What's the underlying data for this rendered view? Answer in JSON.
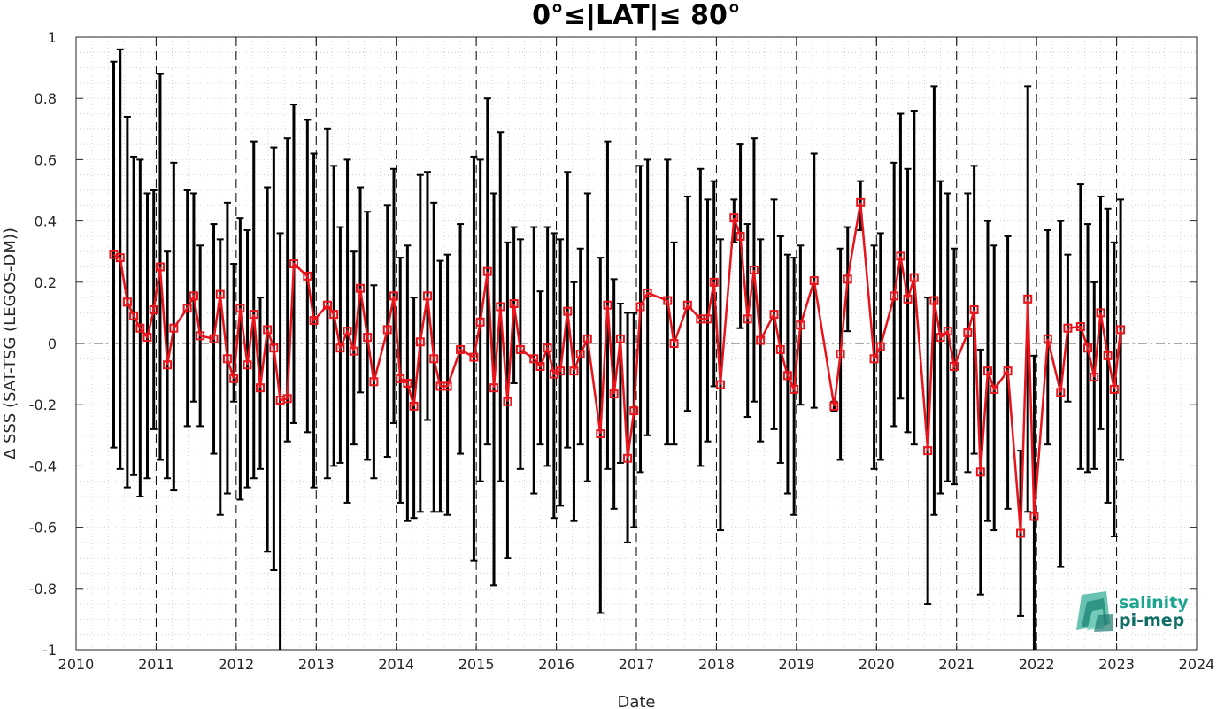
{
  "chart_data": {
    "type": "line",
    "title": "0°≤|LAT|≤ 80°",
    "xlabel": "Date",
    "ylabel": "Δ SSS (SAT-TSG (LEGOS-DM))",
    "xlim": [
      2010,
      2024
    ],
    "ylim": [
      -1,
      1
    ],
    "xticks": [
      "2010",
      "2011",
      "2012",
      "2013",
      "2014",
      "2015",
      "2016",
      "2017",
      "2018",
      "2019",
      "2020",
      "2021",
      "2022",
      "2023",
      "2024"
    ],
    "yticks": [
      "-1",
      "-0.8",
      "-0.6",
      "-0.4",
      "-0.2",
      "0",
      "0.2",
      "0.4",
      "0.6",
      "0.8",
      "1"
    ],
    "grid": "dotted minor grid",
    "year_markers": "dashed vertical lines at year boundaries",
    "zero_line": "dash-dot horizontal line at 0",
    "series": [
      {
        "color": "#e8141c",
        "errorbar_color": "#000000",
        "marker": "square",
        "x": [
          2010.47,
          2010.55,
          2010.64,
          2010.72,
          2010.8,
          2010.89,
          2010.97,
          2011.05,
          2011.14,
          2011.22,
          2011.39,
          2011.47,
          2011.55,
          2011.72,
          2011.8,
          2011.89,
          2011.97,
          2012.05,
          2012.14,
          2012.22,
          2012.3,
          2012.39,
          2012.47,
          2012.55,
          2012.64,
          2012.72,
          2012.89,
          2012.97,
          2013.14,
          2013.22,
          2013.3,
          2013.39,
          2013.47,
          2013.55,
          2013.64,
          2013.72,
          2013.89,
          2013.97,
          2014.05,
          2014.14,
          2014.22,
          2014.3,
          2014.39,
          2014.47,
          2014.55,
          2014.64,
          2014.8,
          2014.97,
          2015.05,
          2015.14,
          2015.22,
          2015.3,
          2015.39,
          2015.47,
          2015.55,
          2015.72,
          2015.8,
          2015.89,
          2015.97,
          2016.05,
          2016.14,
          2016.22,
          2016.3,
          2016.39,
          2016.55,
          2016.64,
          2016.72,
          2016.8,
          2016.89,
          2016.97,
          2017.05,
          2017.14,
          2017.39,
          2017.47,
          2017.64,
          2017.8,
          2017.89,
          2017.97,
          2018.05,
          2018.22,
          2018.3,
          2018.39,
          2018.47,
          2018.55,
          2018.72,
          2018.8,
          2018.89,
          2018.97,
          2019.05,
          2019.22,
          2019.47,
          2019.55,
          2019.64,
          2019.8,
          2019.97,
          2020.05,
          2020.22,
          2020.3,
          2020.39,
          2020.47,
          2020.64,
          2020.72,
          2020.8,
          2020.89,
          2020.97,
          2021.14,
          2021.22,
          2021.3,
          2021.39,
          2021.47,
          2021.64,
          2021.8,
          2021.89,
          2021.97,
          2022.14,
          2022.3,
          2022.39,
          2022.55,
          2022.64,
          2022.72,
          2022.8,
          2022.89,
          2022.97,
          2023.05
        ],
        "values": [
          0.29,
          0.28,
          0.135,
          0.09,
          0.05,
          0.02,
          0.11,
          0.25,
          -0.07,
          0.05,
          0.115,
          0.155,
          0.025,
          0.015,
          0.16,
          -0.05,
          -0.115,
          0.115,
          -0.07,
          0.095,
          -0.145,
          0.045,
          -0.015,
          -0.185,
          -0.18,
          0.26,
          0.22,
          0.075,
          0.125,
          0.095,
          -0.015,
          0.04,
          -0.025,
          0.18,
          0.02,
          -0.125,
          0.045,
          0.155,
          -0.115,
          -0.13,
          -0.205,
          0.005,
          0.155,
          -0.05,
          -0.14,
          -0.14,
          -0.02,
          -0.045,
          0.07,
          0.235,
          -0.145,
          0.12,
          -0.19,
          0.13,
          -0.02,
          -0.05,
          -0.075,
          -0.015,
          -0.1,
          -0.09,
          0.105,
          -0.09,
          -0.035,
          0.015,
          -0.295,
          0.125,
          -0.165,
          0.015,
          -0.375,
          -0.22,
          0.12,
          0.165,
          0.14,
          0.0,
          0.125,
          0.08,
          0.08,
          0.2,
          -0.135,
          0.41,
          0.35,
          0.08,
          0.24,
          0.01,
          0.095,
          -0.02,
          -0.105,
          -0.15,
          0.06,
          0.205,
          -0.205,
          -0.035,
          0.21,
          0.46,
          -0.05,
          -0.01,
          0.155,
          0.285,
          0.145,
          0.215,
          -0.35,
          0.14,
          0.02,
          0.04,
          -0.075,
          0.035,
          0.11,
          -0.42,
          -0.09,
          -0.15,
          -0.09,
          -0.62,
          0.145,
          -0.565,
          0.015,
          -0.16,
          0.05,
          0.055,
          -0.015,
          -0.11,
          0.1,
          -0.04,
          -0.15,
          0.045
        ],
        "err_low": [
          -0.34,
          -0.41,
          -0.47,
          -0.43,
          -0.5,
          -0.44,
          -0.28,
          -0.38,
          -0.44,
          -0.48,
          -0.27,
          -0.19,
          -0.27,
          -0.36,
          -0.56,
          -0.49,
          -0.19,
          -0.51,
          -0.47,
          -0.44,
          -0.41,
          -0.68,
          -0.74,
          -1.0,
          -0.32,
          -0.26,
          -0.29,
          -0.47,
          -0.44,
          -0.4,
          -0.39,
          -0.52,
          -0.33,
          -0.16,
          -0.38,
          -0.44,
          -0.37,
          -0.26,
          -0.52,
          -0.58,
          -0.57,
          -0.55,
          -0.25,
          -0.55,
          -0.55,
          -0.56,
          -0.36,
          -0.71,
          -0.45,
          -0.33,
          -0.79,
          -0.45,
          -0.7,
          -0.13,
          -0.41,
          -0.49,
          -0.33,
          -0.4,
          -0.57,
          -0.53,
          -0.34,
          -0.58,
          -0.33,
          -0.45,
          -0.88,
          -0.41,
          -0.54,
          -0.39,
          -0.65,
          -0.6,
          -0.42,
          -0.3,
          -0.33,
          -0.33,
          -0.22,
          -0.4,
          -0.32,
          -0.14,
          -0.61,
          0.33,
          0.05,
          -0.24,
          -0.19,
          -0.32,
          -0.28,
          -0.39,
          -0.49,
          -0.56,
          -0.2,
          -0.21,
          -0.22,
          -0.38,
          0.04,
          0.37,
          -0.41,
          -0.38,
          -0.27,
          -0.18,
          -0.29,
          -0.33,
          -0.85,
          -0.56,
          -0.49,
          -0.45,
          -0.46,
          -0.42,
          -0.36,
          -0.82,
          -0.58,
          -0.61,
          -0.54,
          -0.89,
          -0.55,
          -1.0,
          -0.33,
          -0.73,
          -0.19,
          -0.41,
          -0.42,
          -0.41,
          -0.28,
          -0.52,
          -0.63,
          -0.38
        ],
        "err_high": [
          0.92,
          0.96,
          0.74,
          0.61,
          0.6,
          0.49,
          0.5,
          0.88,
          0.3,
          0.59,
          0.5,
          0.49,
          0.32,
          0.39,
          0.34,
          0.46,
          0.26,
          0.41,
          0.37,
          0.66,
          0.15,
          0.51,
          0.64,
          0.36,
          0.67,
          0.78,
          0.73,
          0.62,
          0.7,
          0.58,
          0.38,
          0.6,
          0.3,
          0.51,
          0.43,
          0.19,
          0.45,
          0.57,
          0.28,
          0.32,
          0.15,
          0.55,
          0.56,
          0.46,
          0.27,
          0.29,
          0.39,
          0.61,
          0.6,
          0.8,
          0.49,
          0.69,
          0.33,
          0.38,
          0.34,
          0.38,
          0.17,
          0.38,
          0.36,
          0.34,
          0.56,
          0.2,
          0.31,
          0.49,
          0.28,
          0.66,
          0.21,
          0.13,
          0.1,
          0.1,
          0.58,
          0.6,
          0.6,
          0.33,
          0.48,
          0.57,
          0.47,
          0.53,
          0.34,
          0.47,
          0.65,
          0.39,
          0.67,
          0.34,
          0.47,
          0.35,
          0.29,
          0.28,
          0.32,
          0.62,
          -0.19,
          0.31,
          0.38,
          0.53,
          0.32,
          0.36,
          0.59,
          0.75,
          0.57,
          0.76,
          0.15,
          0.84,
          0.53,
          0.49,
          0.31,
          0.49,
          0.58,
          -0.02,
          0.4,
          0.32,
          0.35,
          -0.35,
          0.84,
          -0.04,
          0.37,
          0.4,
          0.29,
          0.52,
          0.39,
          0.2,
          0.48,
          0.44,
          0.33,
          0.47
        ]
      }
    ]
  },
  "logo": {
    "line1": "salinity",
    "line2": "pi-mep",
    "color1": "#1ca58f",
    "color2": "#0f6e66"
  }
}
